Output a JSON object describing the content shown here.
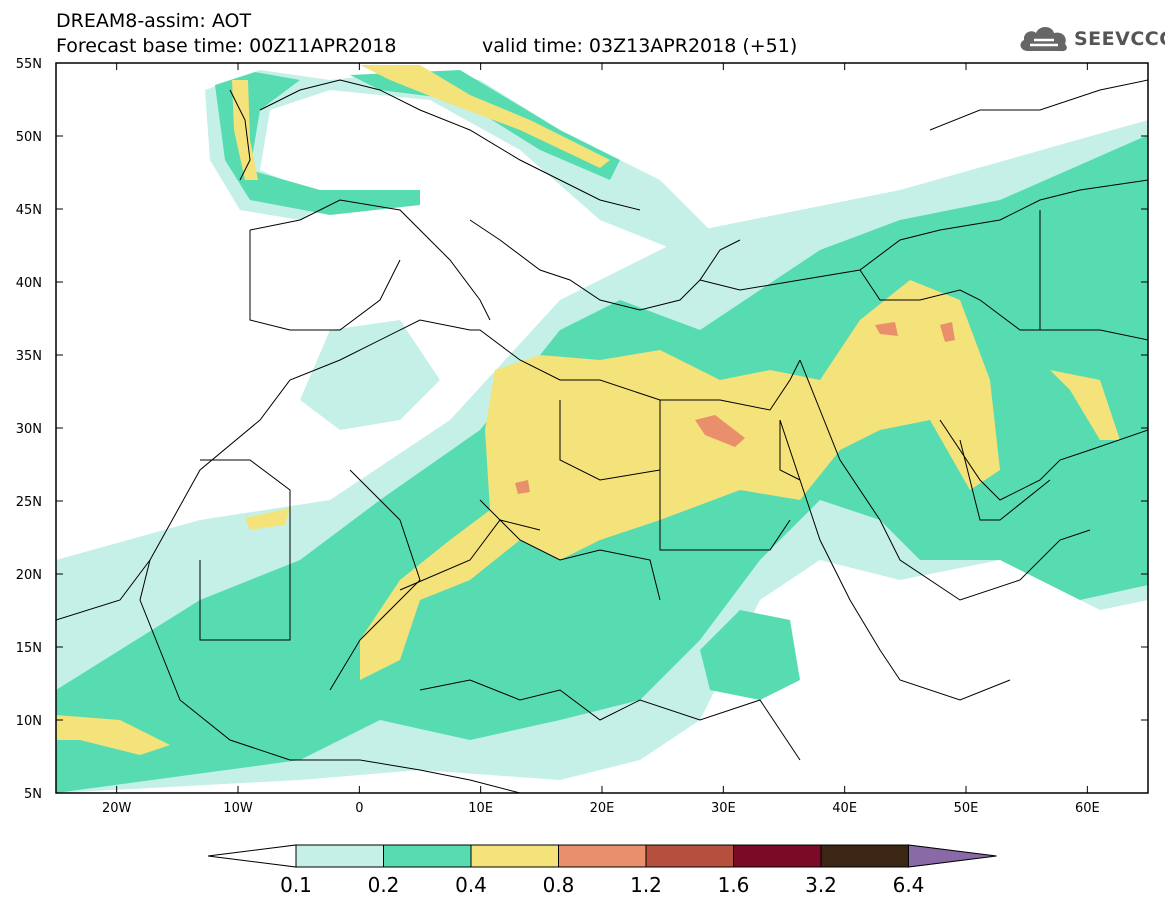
{
  "header": {
    "title": "DREAM8-assim: AOT",
    "base_time": "Forecast base time: 00Z11APR2018",
    "valid_time": "valid time: 03Z13APR2018 (+51)"
  },
  "logo": {
    "text": "SEEVCCC",
    "icon": "cloud-icon"
  },
  "map": {
    "variable": "AOT",
    "projection": "lat-lon",
    "lon_range": [
      -25,
      65
    ],
    "lat_range": [
      5,
      55
    ],
    "lat_labels": [
      "55N",
      "50N",
      "45N",
      "40N",
      "35N",
      "30N",
      "25N",
      "20N",
      "15N",
      "10N",
      "5N"
    ],
    "lon_labels": [
      "20W",
      "10W",
      "0",
      "10E",
      "20E",
      "30E",
      "40E",
      "50E",
      "60E"
    ]
  },
  "colorbar": {
    "labels": [
      "0.1",
      "0.2",
      "0.4",
      "0.8",
      "1.2",
      "1.6",
      "3.2",
      "6.4"
    ],
    "colors": [
      "#c5f0e8",
      "#57dcb2",
      "#f4e27a",
      "#ea8f6c",
      "#b5503e",
      "#7a0a26",
      "#3b2515",
      "#8a6aa6"
    ]
  }
}
